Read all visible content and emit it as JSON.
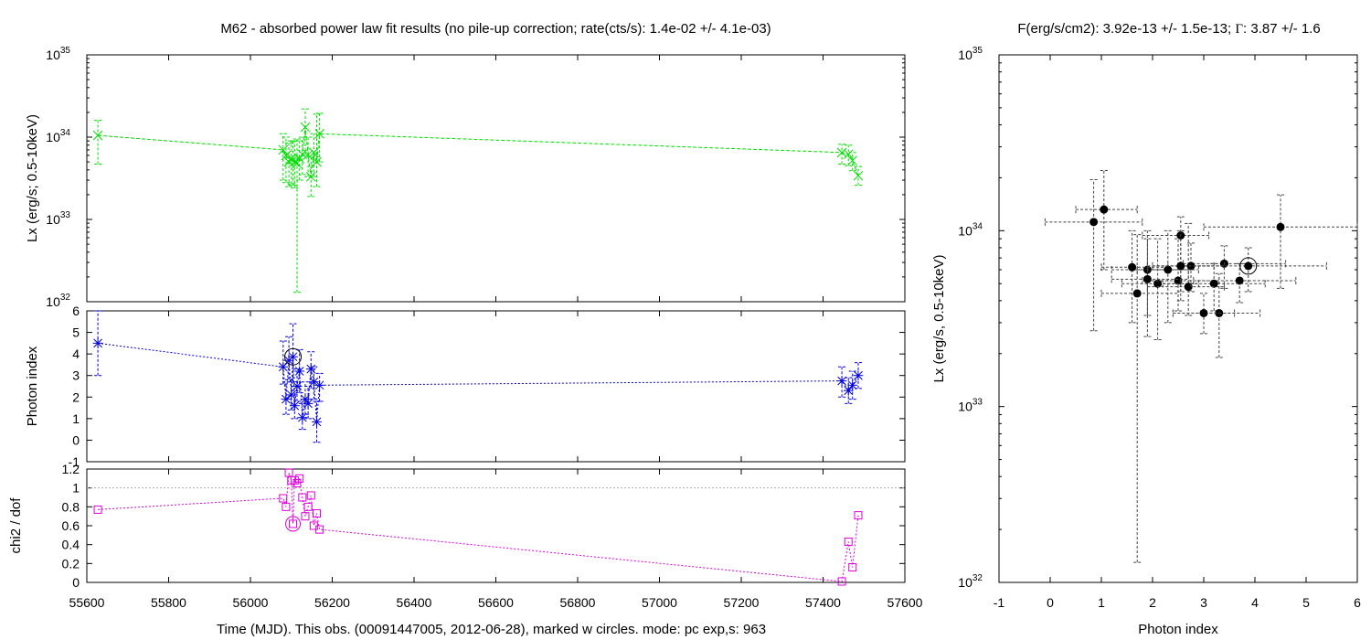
{
  "chart_data": [
    {
      "type": "scatter",
      "panel": "Lx vs time",
      "title": "M62  - absorbed power law fit results (no pile-up correction; rate(cts/s): 1.4e-02 +/- 4.1e-03)",
      "ylabel": "Lx (erg/s; 0.5-10keV)",
      "yscale": "log",
      "ylim": [
        1e+32,
        1e+35
      ],
      "xlim": [
        55600,
        57600
      ],
      "ytick_mantissa": "10",
      "ytick_exponents": [
        "32",
        "33",
        "34",
        "35"
      ],
      "yticks": [
        1e+32,
        1e+33,
        1e+34,
        1e+35
      ],
      "color": "#00dd00",
      "series": [
        {
          "x": [
            55627,
            56080,
            56087,
            56094,
            56100,
            56104,
            56108,
            56114,
            56120,
            56127,
            56134,
            56141,
            56148,
            56155,
            56162,
            56169,
            57446,
            57462,
            57472,
            57486
          ],
          "y": [
            1.05e+34,
            7e+33,
            6e+33,
            5e+33,
            5.5e+33,
            5.3e+33,
            5e+33,
            4.8e+33,
            5.5e+33,
            6.2e+33,
            1.32e+34,
            6.1e+33,
            3.3e+33,
            6.5e+33,
            5e+33,
            1.1e+34,
            6.5e+33,
            6.2e+33,
            5.2e+33,
            3.4e+33
          ],
          "ylow": [
            4.7e+33,
            3e+33,
            2.8e+33,
            2.5e+33,
            2.7e+33,
            2.6e+33,
            2.4e+33,
            1.3e+32,
            3e+33,
            3.5e+33,
            6e+33,
            3.3e+33,
            1.9e+33,
            3.3e+33,
            2.5e+33,
            5e+33,
            4.7e+33,
            4.5e+33,
            3.9e+33,
            2.6e+33
          ],
          "yhigh": [
            1.6e+34,
            1.1e+34,
            1e+34,
            8.5e+33,
            9e+33,
            9e+33,
            9e+33,
            9.5e+33,
            9e+33,
            1e+34,
            2.2e+34,
            1e+34,
            5.7e+33,
            1.1e+34,
            1.9e+34,
            1.95e+34,
            8.2e+33,
            8e+33,
            6.5e+33,
            4.4e+33
          ]
        }
      ]
    },
    {
      "type": "scatter",
      "panel": "photon index vs time",
      "ylabel": "Photon index",
      "ylim": [
        -1,
        6
      ],
      "xlim": [
        55600,
        57600
      ],
      "yticks": [
        -1,
        0,
        1,
        2,
        3,
        4,
        5,
        6
      ],
      "color": "#0000dd",
      "marked_x": 56104,
      "marked_y": 3.87,
      "series": [
        {
          "x": [
            55627,
            56080,
            56087,
            56094,
            56100,
            56104,
            56108,
            56114,
            56120,
            56127,
            56134,
            56141,
            56148,
            56155,
            56162,
            56169,
            57446,
            57462,
            57472,
            57486
          ],
          "y": [
            4.5,
            3.4,
            1.9,
            3.7,
            2.1,
            3.87,
            1.6,
            2.5,
            3.2,
            1.05,
            1.9,
            1.7,
            3.3,
            2.7,
            0.85,
            2.55,
            2.75,
            2.3,
            2.55,
            3.0
          ],
          "ylow": [
            3.0,
            2.6,
            1.2,
            2.8,
            1.4,
            2.7,
            1.0,
            1.8,
            2.2,
            0.5,
            1.2,
            1.0,
            2.4,
            1.9,
            -0.1,
            1.8,
            2.0,
            1.7,
            1.9,
            2.4
          ],
          "yhigh": [
            6.0,
            4.6,
            2.7,
            4.8,
            2.9,
            5.4,
            2.3,
            3.3,
            4.2,
            1.7,
            2.7,
            2.5,
            4.1,
            3.4,
            1.8,
            3.1,
            3.4,
            2.9,
            3.2,
            3.6
          ]
        }
      ]
    },
    {
      "type": "scatter",
      "panel": "chi2 vs time",
      "ylabel": "chi2 / dof",
      "xlabel": "Time (MJD). This obs. (00091447005, 2012-06-28), marked w circles. mode: pc exp,s: 963",
      "ylim": [
        0,
        1.2
      ],
      "xlim": [
        55600,
        57600
      ],
      "yticks": [
        0,
        0.2,
        0.4,
        0.6,
        0.8,
        1,
        1.2
      ],
      "yticklabels": [
        "0",
        "0.2",
        "0.4",
        "0.6",
        "0.8",
        "1",
        "1.2"
      ],
      "xticks": [
        55600,
        55800,
        56000,
        56200,
        56400,
        56600,
        56800,
        57000,
        57200,
        57400,
        57600
      ],
      "xticklabels": [
        "55600",
        "55800",
        "56000",
        "56200",
        "56400",
        "56600",
        "56800",
        "57000",
        "57200",
        "57400",
        "57600"
      ],
      "reference_line": 1,
      "color": "#dd00dd",
      "marked_x": 56104,
      "marked_y": 0.62,
      "series": [
        {
          "x": [
            55627,
            56080,
            56087,
            56094,
            56100,
            56104,
            56108,
            56114,
            56120,
            56127,
            56134,
            56141,
            56148,
            56155,
            56162,
            56169,
            57446,
            57462,
            57472,
            57486
          ],
          "y": [
            0.77,
            0.89,
            0.8,
            1.16,
            1.08,
            0.62,
            1.08,
            1.05,
            1.1,
            0.9,
            0.7,
            0.8,
            0.92,
            0.6,
            0.73,
            0.56,
            0.01,
            0.43,
            0.16,
            0.71
          ]
        }
      ]
    },
    {
      "type": "scatter",
      "panel": "Lx vs photon index",
      "title_text": "F(erg/s/cm2): 3.92e-13 +/- 1.5e-13; ",
      "title_symbol": "Γ",
      "title_tail": ": 3.87 +/- 1.6",
      "xlabel": "Photon index",
      "ylabel": "Lx (erg/s, 0.5-10keV)",
      "xlim": [
        -1,
        6
      ],
      "yscale": "log",
      "ylim": [
        1e+32,
        1e+35
      ],
      "xticks": [
        -1,
        0,
        1,
        2,
        3,
        4,
        5,
        6
      ],
      "ytick_mantissa": "10",
      "ytick_exponents": [
        "32",
        "33",
        "34",
        "35"
      ],
      "yticks": [
        1e+32,
        1e+33,
        1e+34,
        1e+35
      ],
      "color": "#000000",
      "marked_x": 3.87,
      "marked_y": 6.3e+33,
      "series": [
        {
          "x": [
            4.5,
            3.4,
            1.9,
            3.7,
            2.1,
            3.87,
            1.6,
            2.5,
            3.2,
            1.05,
            1.9,
            1.7,
            3.3,
            2.7,
            0.85,
            2.55,
            2.75,
            2.3,
            2.55,
            3.0
          ],
          "y": [
            1.05e+34,
            6.5e+33,
            6e+33,
            5.2e+33,
            5e+33,
            6.3e+33,
            6.2e+33,
            5.2e+33,
            5e+33,
            1.32e+34,
            5.3e+33,
            4.4e+33,
            3.4e+33,
            4.8e+33,
            1.12e+34,
            9.4e+33,
            6.3e+33,
            6e+33,
            6.3e+33,
            3.4e+33
          ],
          "xlow": [
            3.0,
            2.6,
            1.2,
            2.8,
            1.4,
            2.7,
            1.0,
            1.8,
            2.2,
            0.5,
            1.2,
            1.0,
            2.4,
            1.9,
            -0.1,
            1.8,
            2.0,
            1.7,
            1.9,
            2.4
          ],
          "xhigh": [
            6.0,
            4.6,
            2.7,
            4.8,
            2.9,
            5.4,
            2.3,
            3.3,
            4.2,
            1.7,
            2.7,
            2.5,
            4.1,
            3.4,
            1.8,
            3.1,
            3.4,
            2.9,
            3.2,
            3.6
          ],
          "ylow": [
            4.7e+33,
            4.7e+33,
            3.3e+33,
            3.9e+33,
            2.4e+33,
            4.5e+33,
            3e+33,
            3.5e+33,
            3.5e+33,
            6e+33,
            2.5e+33,
            1.3e+32,
            1.9e+33,
            3.3e+33,
            2.7e+33,
            4.5e+33,
            4.5e+33,
            3e+33,
            4e+33,
            2.6e+33
          ],
          "yhigh": [
            1.6e+34,
            8.2e+33,
            1e+34,
            6.5e+33,
            9e+33,
            8e+33,
            1e+34,
            9e+33,
            6.5e+33,
            2.2e+34,
            9e+33,
            9.5e+33,
            5.7e+33,
            1.1e+34,
            1.95e+34,
            1.2e+34,
            8.5e+33,
            1e+34,
            1e+34,
            4.4e+33
          ]
        }
      ]
    }
  ]
}
